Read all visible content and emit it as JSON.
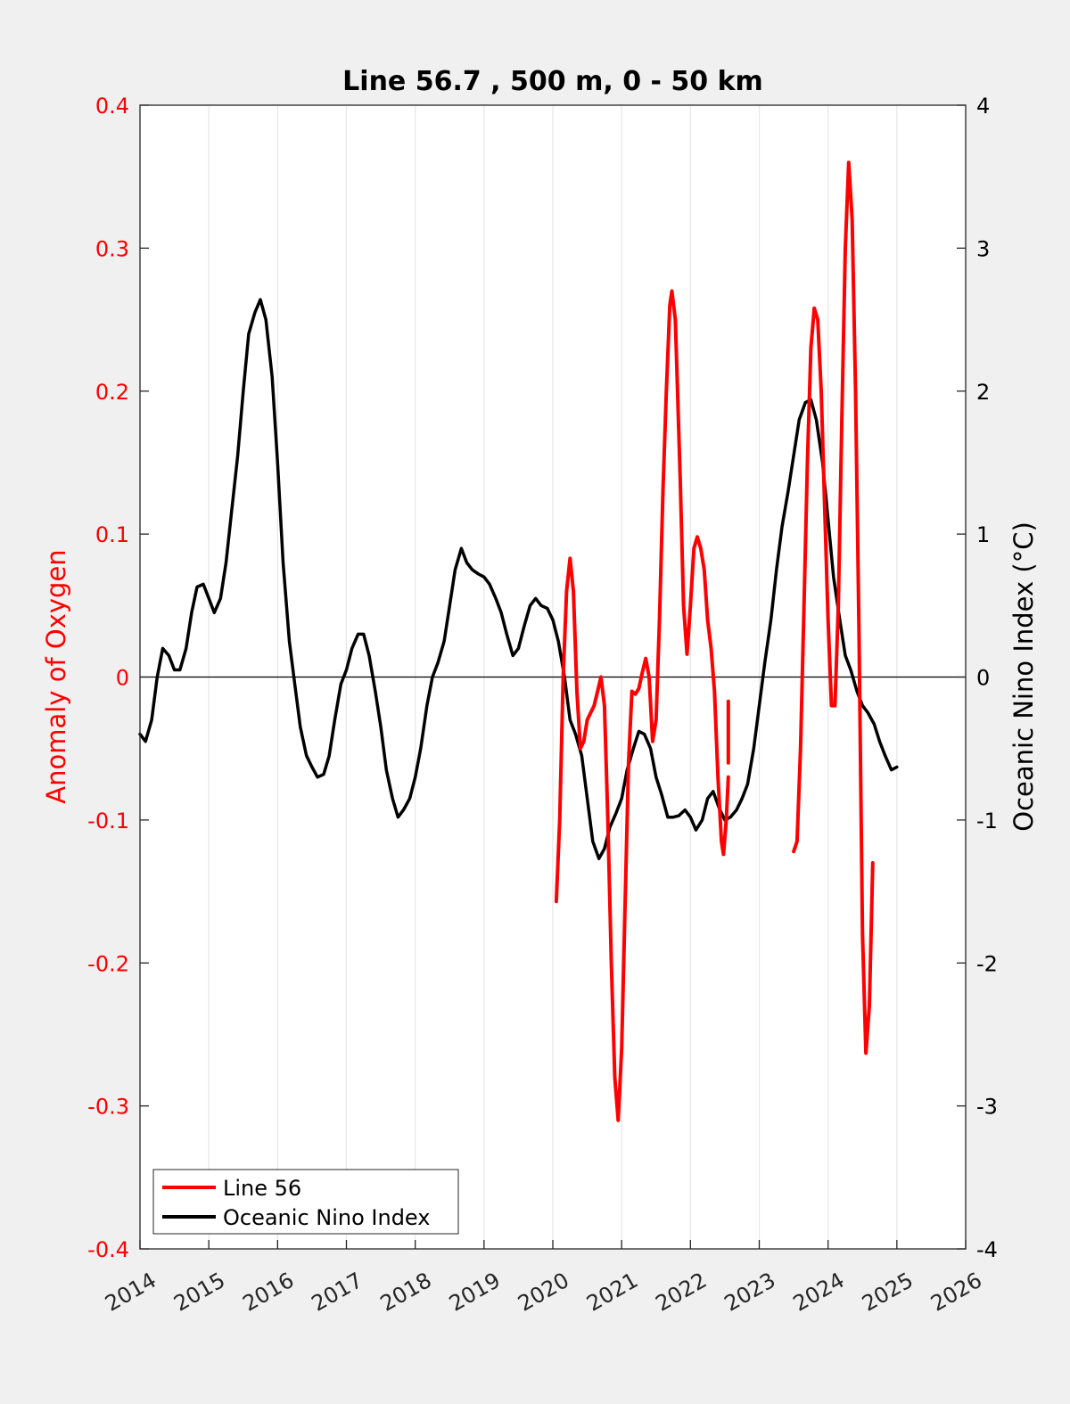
{
  "chart_data": {
    "type": "line",
    "title": "Line 56.7 , 500 m, 0 - 50 km",
    "xlabel": "",
    "ylabel_left": "Anomaly of Oxygen",
    "ylabel_right": "Oceanic Nino Index (°C)",
    "xlim": [
      2014,
      2026
    ],
    "ylim_left": [
      -0.4,
      0.4
    ],
    "ylim_right": [
      -4,
      4
    ],
    "x_ticks": [
      "2014",
      "2015",
      "2016",
      "2017",
      "2018",
      "2019",
      "2020",
      "2021",
      "2022",
      "2023",
      "2024",
      "2025",
      "2026"
    ],
    "y_left_ticks": [
      "0.4",
      "0.3",
      "0.2",
      "0.1",
      "0",
      "-0.1",
      "-0.2",
      "-0.3",
      "-0.4"
    ],
    "y_right_ticks": [
      "4",
      "3",
      "2",
      "1",
      "0",
      "-1",
      "-2",
      "-3",
      "-4"
    ],
    "grid": "vertical",
    "zero_line": true,
    "legend_position": "bottom-left",
    "colors": {
      "line56": "#ff0000",
      "oni": "#000000",
      "left_axis": "#ff0000",
      "right_axis": "#000000"
    },
    "series": [
      {
        "name": "Line 56",
        "axis": "left",
        "segments": [
          [
            [
              2020.05,
              -0.157
            ],
            [
              2020.1,
              -0.1
            ],
            [
              2020.15,
              0.0
            ],
            [
              2020.2,
              0.06
            ],
            [
              2020.25,
              0.083
            ],
            [
              2020.3,
              0.06
            ],
            [
              2020.35,
              -0.01
            ],
            [
              2020.4,
              -0.05
            ],
            [
              2020.45,
              -0.045
            ],
            [
              2020.5,
              -0.03
            ],
            [
              2020.55,
              -0.025
            ],
            [
              2020.6,
              -0.02
            ],
            [
              2020.65,
              -0.01
            ],
            [
              2020.7,
              0.0
            ],
            [
              2020.75,
              -0.02
            ],
            [
              2020.8,
              -0.1
            ],
            [
              2020.85,
              -0.2
            ],
            [
              2020.9,
              -0.28
            ],
            [
              2020.95,
              -0.31
            ],
            [
              2021.0,
              -0.26
            ],
            [
              2021.05,
              -0.16
            ],
            [
              2021.1,
              -0.06
            ],
            [
              2021.15,
              -0.01
            ],
            [
              2021.2,
              -0.012
            ],
            [
              2021.25,
              -0.008
            ],
            [
              2021.3,
              0.003
            ],
            [
              2021.35,
              0.013
            ],
            [
              2021.4,
              0.0
            ],
            [
              2021.45,
              -0.045
            ],
            [
              2021.5,
              -0.03
            ],
            [
              2021.55,
              0.04
            ],
            [
              2021.6,
              0.13
            ],
            [
              2021.65,
              0.2
            ],
            [
              2021.7,
              0.26
            ],
            [
              2021.73,
              0.27
            ],
            [
              2021.78,
              0.25
            ],
            [
              2021.85,
              0.14
            ],
            [
              2021.9,
              0.05
            ],
            [
              2021.95,
              0.016
            ],
            [
              2022.0,
              0.05
            ],
            [
              2022.05,
              0.09
            ],
            [
              2022.1,
              0.098
            ],
            [
              2022.15,
              0.09
            ],
            [
              2022.2,
              0.075
            ],
            [
              2022.25,
              0.04
            ],
            [
              2022.3,
              0.02
            ],
            [
              2022.35,
              -0.01
            ],
            [
              2022.4,
              -0.07
            ],
            [
              2022.45,
              -0.115
            ],
            [
              2022.48,
              -0.124
            ],
            [
              2022.52,
              -0.1
            ],
            [
              2022.55,
              -0.07
            ]
          ],
          [
            [
              2022.55,
              -0.017
            ],
            [
              2022.55,
              -0.06
            ]
          ],
          [
            [
              2023.5,
              -0.122
            ],
            [
              2023.55,
              -0.115
            ],
            [
              2023.6,
              -0.05
            ],
            [
              2023.65,
              0.05
            ],
            [
              2023.7,
              0.15
            ],
            [
              2023.75,
              0.23
            ],
            [
              2023.8,
              0.258
            ],
            [
              2023.85,
              0.25
            ],
            [
              2023.9,
              0.2
            ],
            [
              2023.95,
              0.12
            ],
            [
              2024.0,
              0.04
            ],
            [
              2024.05,
              -0.02
            ],
            [
              2024.1,
              -0.02
            ],
            [
              2024.15,
              0.05
            ],
            [
              2024.2,
              0.18
            ],
            [
              2024.25,
              0.3
            ],
            [
              2024.3,
              0.36
            ],
            [
              2024.35,
              0.32
            ],
            [
              2024.4,
              0.2
            ],
            [
              2024.45,
              0.03
            ],
            [
              2024.5,
              -0.18
            ],
            [
              2024.55,
              -0.263
            ],
            [
              2024.6,
              -0.23
            ],
            [
              2024.65,
              -0.13
            ]
          ]
        ]
      },
      {
        "name": "Oceanic Nino Index",
        "axis": "right",
        "points": [
          [
            2014.0,
            -0.4
          ],
          [
            2014.08,
            -0.45
          ],
          [
            2014.17,
            -0.3
          ],
          [
            2014.25,
            0.0
          ],
          [
            2014.33,
            0.2
          ],
          [
            2014.42,
            0.15
          ],
          [
            2014.5,
            0.05
          ],
          [
            2014.58,
            0.05
          ],
          [
            2014.67,
            0.2
          ],
          [
            2014.75,
            0.45
          ],
          [
            2014.83,
            0.63
          ],
          [
            2014.92,
            0.65
          ],
          [
            2015.0,
            0.55
          ],
          [
            2015.08,
            0.45
          ],
          [
            2015.17,
            0.55
          ],
          [
            2015.25,
            0.8
          ],
          [
            2015.33,
            1.15
          ],
          [
            2015.42,
            1.55
          ],
          [
            2015.5,
            2.0
          ],
          [
            2015.58,
            2.4
          ],
          [
            2015.67,
            2.55
          ],
          [
            2015.75,
            2.64
          ],
          [
            2015.83,
            2.5
          ],
          [
            2015.92,
            2.1
          ],
          [
            2016.0,
            1.5
          ],
          [
            2016.08,
            0.8
          ],
          [
            2016.17,
            0.25
          ],
          [
            2016.25,
            -0.05
          ],
          [
            2016.33,
            -0.35
          ],
          [
            2016.42,
            -0.55
          ],
          [
            2016.5,
            -0.63
          ],
          [
            2016.58,
            -0.7
          ],
          [
            2016.67,
            -0.68
          ],
          [
            2016.75,
            -0.55
          ],
          [
            2016.83,
            -0.3
          ],
          [
            2016.92,
            -0.05
          ],
          [
            2017.0,
            0.05
          ],
          [
            2017.08,
            0.2
          ],
          [
            2017.17,
            0.3
          ],
          [
            2017.25,
            0.3
          ],
          [
            2017.33,
            0.15
          ],
          [
            2017.42,
            -0.1
          ],
          [
            2017.5,
            -0.35
          ],
          [
            2017.58,
            -0.65
          ],
          [
            2017.67,
            -0.85
          ],
          [
            2017.75,
            -0.98
          ],
          [
            2017.83,
            -0.93
          ],
          [
            2017.92,
            -0.85
          ],
          [
            2018.0,
            -0.7
          ],
          [
            2018.08,
            -0.5
          ],
          [
            2018.17,
            -0.2
          ],
          [
            2018.25,
            0.0
          ],
          [
            2018.33,
            0.1
          ],
          [
            2018.42,
            0.25
          ],
          [
            2018.5,
            0.5
          ],
          [
            2018.58,
            0.75
          ],
          [
            2018.67,
            0.9
          ],
          [
            2018.75,
            0.8
          ],
          [
            2018.83,
            0.75
          ],
          [
            2018.92,
            0.72
          ],
          [
            2019.0,
            0.7
          ],
          [
            2019.08,
            0.65
          ],
          [
            2019.17,
            0.55
          ],
          [
            2019.25,
            0.45
          ],
          [
            2019.33,
            0.3
          ],
          [
            2019.42,
            0.15
          ],
          [
            2019.5,
            0.2
          ],
          [
            2019.58,
            0.35
          ],
          [
            2019.67,
            0.5
          ],
          [
            2019.75,
            0.55
          ],
          [
            2019.83,
            0.5
          ],
          [
            2019.92,
            0.48
          ],
          [
            2020.0,
            0.4
          ],
          [
            2020.08,
            0.25
          ],
          [
            2020.17,
            0.0
          ],
          [
            2020.25,
            -0.3
          ],
          [
            2020.33,
            -0.4
          ],
          [
            2020.42,
            -0.55
          ],
          [
            2020.5,
            -0.85
          ],
          [
            2020.58,
            -1.15
          ],
          [
            2020.67,
            -1.27
          ],
          [
            2020.75,
            -1.2
          ],
          [
            2020.83,
            -1.05
          ],
          [
            2020.92,
            -0.95
          ],
          [
            2021.0,
            -0.85
          ],
          [
            2021.08,
            -0.65
          ],
          [
            2021.17,
            -0.5
          ],
          [
            2021.25,
            -0.38
          ],
          [
            2021.33,
            -0.4
          ],
          [
            2021.42,
            -0.5
          ],
          [
            2021.5,
            -0.7
          ],
          [
            2021.58,
            -0.82
          ],
          [
            2021.67,
            -0.98
          ],
          [
            2021.75,
            -0.98
          ],
          [
            2021.83,
            -0.97
          ],
          [
            2021.92,
            -0.93
          ],
          [
            2022.0,
            -0.98
          ],
          [
            2022.08,
            -1.07
          ],
          [
            2022.17,
            -1.0
          ],
          [
            2022.25,
            -0.85
          ],
          [
            2022.33,
            -0.8
          ],
          [
            2022.42,
            -0.92
          ],
          [
            2022.5,
            -1.0
          ],
          [
            2022.58,
            -0.98
          ],
          [
            2022.67,
            -0.93
          ],
          [
            2022.75,
            -0.85
          ],
          [
            2022.83,
            -0.75
          ],
          [
            2022.92,
            -0.5
          ],
          [
            2023.0,
            -0.2
          ],
          [
            2023.08,
            0.1
          ],
          [
            2023.17,
            0.4
          ],
          [
            2023.25,
            0.75
          ],
          [
            2023.33,
            1.05
          ],
          [
            2023.42,
            1.3
          ],
          [
            2023.5,
            1.55
          ],
          [
            2023.58,
            1.8
          ],
          [
            2023.67,
            1.92
          ],
          [
            2023.75,
            1.94
          ],
          [
            2023.83,
            1.8
          ],
          [
            2023.92,
            1.5
          ],
          [
            2024.0,
            1.1
          ],
          [
            2024.08,
            0.7
          ],
          [
            2024.17,
            0.4
          ],
          [
            2024.25,
            0.15
          ],
          [
            2024.33,
            0.05
          ],
          [
            2024.42,
            -0.1
          ],
          [
            2024.5,
            -0.2
          ],
          [
            2024.58,
            -0.25
          ],
          [
            2024.67,
            -0.33
          ],
          [
            2024.75,
            -0.45
          ],
          [
            2024.83,
            -0.55
          ],
          [
            2024.92,
            -0.65
          ],
          [
            2025.0,
            -0.63
          ]
        ]
      }
    ]
  }
}
